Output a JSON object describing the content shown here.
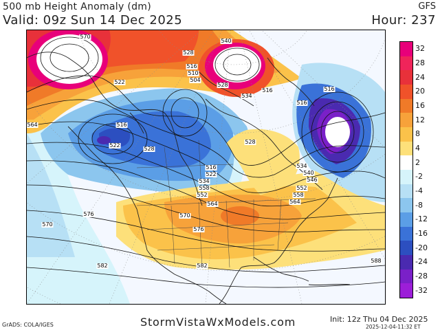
{
  "header": {
    "title": "500 mb Height Anomaly (dm)",
    "valid": "Valid: 09z Sun 14 Dec 2025",
    "model": "GFS",
    "hour": "Hour: 237"
  },
  "colorbar": {
    "levels": [
      "32",
      "28",
      "24",
      "20",
      "16",
      "12",
      "8",
      "4",
      "2",
      "-2",
      "-4",
      "-8",
      "-12",
      "-16",
      "-20",
      "-24",
      "-28",
      "-32"
    ],
    "colors": [
      "#e8007a",
      "#f0245a",
      "#e8313a",
      "#f0522a",
      "#f07a28",
      "#f7a23a",
      "#fbc24a",
      "#fde07a",
      "#ffffff",
      "#d6f4fb",
      "#b7e0f5",
      "#8cc6ee",
      "#5b9ee6",
      "#3a72d8",
      "#2c4fc0",
      "#4a2ab0",
      "#7a20c8",
      "#9c1ed8"
    ]
  },
  "contour_labels": [
    "570",
    "540",
    "528",
    "516",
    "510",
    "504",
    "522",
    "528",
    "534",
    "516",
    "516",
    "516",
    "564",
    "516",
    "522",
    "528",
    "528",
    "516",
    "522",
    "534",
    "558",
    "552",
    "564",
    "534",
    "540",
    "546",
    "552",
    "558",
    "564",
    "570",
    "576",
    "570",
    "576",
    "582",
    "582",
    "588"
  ],
  "footer": {
    "brand": "StormVistaWxModels.com",
    "grads": "GrADS: COLA/IGES",
    "init": "Init: 12z Thu 04 Dec 2025",
    "stamp": "2025-12-04-11:32 ET"
  },
  "map": {
    "projection": "polar stereographic",
    "region": "North America"
  }
}
